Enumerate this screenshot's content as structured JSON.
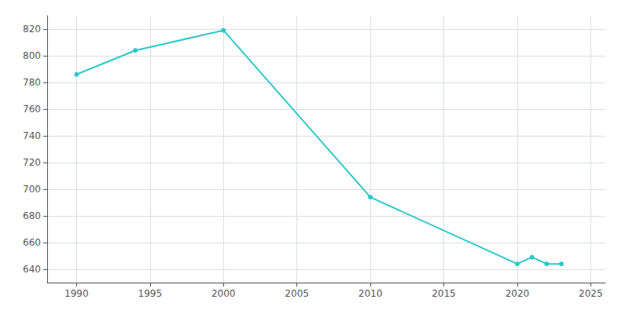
{
  "chart_data": {
    "type": "line",
    "x": [
      1990,
      1994,
      2000,
      2010,
      2020,
      2021,
      2022,
      2023
    ],
    "values": [
      786,
      804,
      819,
      694,
      644,
      649,
      644,
      644
    ],
    "color": "#2ec8c8",
    "marker": "circle",
    "xlim": [
      1988,
      2026
    ],
    "xticks": [
      1990,
      1995,
      2000,
      2005,
      2010,
      2015,
      2020,
      2025
    ],
    "ylim": [
      630,
      830
    ],
    "yticks": [
      640,
      660,
      680,
      700,
      720,
      740,
      760,
      780,
      800,
      820
    ],
    "grid": true
  }
}
